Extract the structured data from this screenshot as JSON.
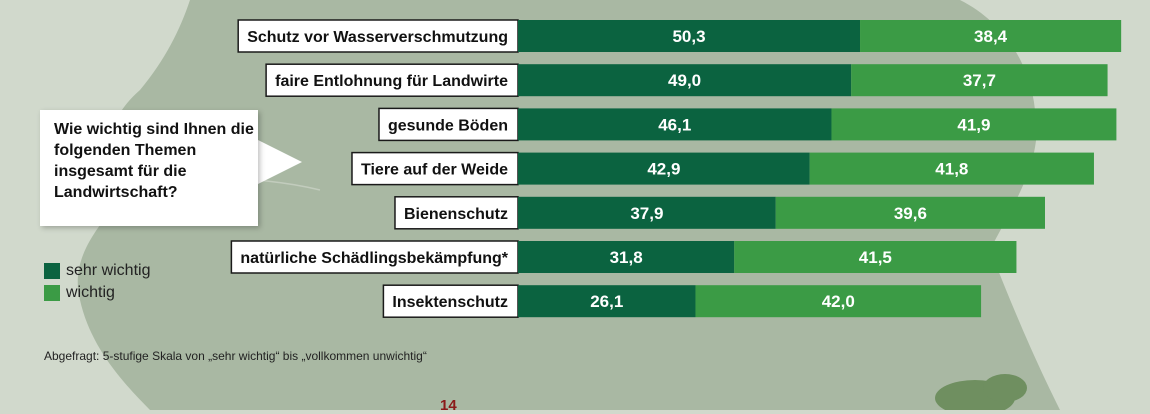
{
  "colors": {
    "sehr_wichtig": "#0b6340",
    "wichtig": "#3b9b45",
    "page_number": "#8b1a1a"
  },
  "question": "Wie wichtig sind Ihnen die folgenden Themen insgesamt für die Landwirtschaft?",
  "legend": [
    {
      "label": "sehr wichtig",
      "color": "#0b6340"
    },
    {
      "label": "wichtig",
      "color": "#3b9b45"
    }
  ],
  "footnote": "Abgefragt: 5-stufige Skala von „sehr wichtig“ bis „vollkommen unwichtig“",
  "page_number": "14",
  "chart_data": {
    "type": "bar",
    "orientation": "horizontal",
    "stacked": true,
    "categories": [
      "Schutz vor Wasserverschmutzung",
      "faire Entlohnung für Landwirte",
      "gesunde Böden",
      "Tiere auf der Weide",
      "Bienenschutz",
      "natürliche Schädlingsbekämpfung*",
      "Insektenschutz"
    ],
    "series": [
      {
        "name": "sehr wichtig",
        "values": [
          50.3,
          49.0,
          46.1,
          42.9,
          37.9,
          31.8,
          26.1
        ]
      },
      {
        "name": "wichtig",
        "values": [
          38.4,
          37.7,
          41.9,
          41.8,
          39.6,
          41.5,
          42.0
        ]
      }
    ],
    "data_labels": [
      [
        "50,3",
        "49,0",
        "46,1",
        "42,9",
        "37,9",
        "31,8",
        "26,1"
      ],
      [
        "38,4",
        "37,7",
        "41,9",
        "41,8",
        "39,6",
        "41,5",
        "42,0"
      ]
    ],
    "grid": false,
    "legend_position": "left"
  }
}
